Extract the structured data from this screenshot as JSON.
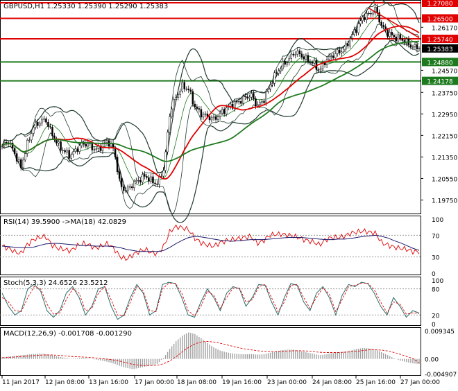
{
  "colors": {
    "background": "#ffffff",
    "frame": "#000000",
    "candles": "#000000",
    "bollinger": "#1f3a2a",
    "ma_red": "#e00000",
    "ma_green": "#1e7a1e",
    "level_red": "#e00000",
    "level_green": "#1e7a1e",
    "rsi_line": "#e00000",
    "rsi_ma": "#1a1a6e",
    "stoch_main": "#2a6a6a",
    "stoch_signal": "#e00000",
    "macd_hist": "#a0a0a0",
    "macd_signal": "#e00000"
  },
  "chart_data": [
    {
      "type": "candlestick",
      "title": "GBPUSD,H1 1.25330 1.25390 1.25290 1.25383",
      "ylim": [
        1.193,
        1.2708
      ],
      "yticks": [
        "1.26170",
        "1.25383",
        "1.24570",
        "1.23750",
        "1.22950",
        "1.22150",
        "1.21350",
        "1.20550",
        "1.19750"
      ],
      "ytick_values": [
        1.2617,
        1.25383,
        1.2457,
        1.2375,
        1.2295,
        1.2215,
        1.2135,
        1.2055,
        1.1975
      ],
      "levels": [
        {
          "label": "1.27080",
          "value": 1.2708,
          "color": "red"
        },
        {
          "label": "1.26500",
          "value": 1.265,
          "color": "red"
        },
        {
          "label": "1.25740",
          "value": 1.2574,
          "color": "red"
        },
        {
          "label": "1.24880",
          "value": 1.2488,
          "color": "green"
        },
        {
          "label": "1.24178",
          "value": 1.24178,
          "color": "green"
        }
      ],
      "current_price": "1.25383",
      "current_value": 1.25383,
      "price_path": [
        1.2175,
        1.2195,
        1.215,
        1.2095,
        1.218,
        1.2245,
        1.2265,
        1.2275,
        1.222,
        1.218,
        1.2155,
        1.214,
        1.2165,
        1.2185,
        1.218,
        1.216,
        1.2175,
        1.2195,
        1.216,
        1.2025,
        1.201,
        1.2035,
        1.205,
        1.2065,
        1.2045,
        1.2035,
        1.2095,
        1.2305,
        1.236,
        1.24,
        1.2385,
        1.232,
        1.2295,
        1.2285,
        1.2275,
        1.2295,
        1.2315,
        1.233,
        1.234,
        1.2355,
        1.2365,
        1.2325,
        1.2345,
        1.24,
        1.2445,
        1.2475,
        1.2495,
        1.2525,
        1.2515,
        1.2495,
        1.2485,
        1.2455,
        1.2495,
        1.251,
        1.2525,
        1.2535,
        1.258,
        1.2615,
        1.2655,
        1.2665,
        1.2685,
        1.262,
        1.2595,
        1.258,
        1.2575,
        1.256,
        1.2545,
        1.2538
      ],
      "xticks": [
        "11 Jan 2017",
        "12 Jan 08:00",
        "13 Jan 16:00",
        "17 Jan 00:00",
        "18 Jan 08:00",
        "19 Jan 16:00",
        "23 Jan 00:00",
        "24 Jan 08:00",
        "25 Jan 16:00",
        "27 Jan 00:00"
      ]
    },
    {
      "type": "line",
      "title": "RSI(14) 39.5900 ->MA(18) 42.0829",
      "ylim": [
        0,
        100
      ],
      "yticks": [
        "100",
        "70",
        "30",
        "0"
      ],
      "ytick_values": [
        100,
        70,
        30,
        0
      ],
      "rsi": [
        50,
        46,
        40,
        36,
        52,
        62,
        66,
        68,
        52,
        46,
        44,
        41,
        50,
        55,
        52,
        46,
        50,
        55,
        45,
        30,
        26,
        34,
        40,
        44,
        38,
        36,
        50,
        78,
        86,
        84,
        80,
        64,
        56,
        52,
        50,
        56,
        60,
        62,
        64,
        66,
        68,
        55,
        60,
        70,
        72,
        72,
        70,
        68,
        64,
        60,
        58,
        52,
        62,
        66,
        66,
        68,
        74,
        76,
        78,
        76,
        74,
        56,
        52,
        48,
        46,
        44,
        40,
        39.59
      ],
      "rsi_ma": [
        50,
        49,
        48,
        47,
        47,
        48,
        51,
        54,
        55,
        55,
        54,
        53,
        52,
        51,
        51,
        50,
        50,
        50,
        49,
        47,
        44,
        42,
        40,
        40,
        40,
        40,
        42,
        48,
        55,
        61,
        66,
        68,
        67,
        65,
        63,
        61,
        60,
        59,
        60,
        61,
        62,
        62,
        62,
        63,
        64,
        65,
        66,
        66,
        66,
        65,
        64,
        63,
        62,
        62,
        63,
        63,
        64,
        66,
        68,
        69,
        70,
        68,
        65,
        60,
        56,
        51,
        46,
        42.0829
      ]
    },
    {
      "type": "line",
      "title": "Stoch(5,3,3) 24.6526 23.5212",
      "ylim": [
        0,
        100
      ],
      "yticks": [
        "100",
        "80",
        "20",
        "0"
      ],
      "ytick_values": [
        100,
        80,
        20,
        0
      ],
      "main": [
        70,
        40,
        20,
        30,
        80,
        90,
        75,
        30,
        15,
        30,
        70,
        85,
        60,
        20,
        40,
        80,
        85,
        40,
        10,
        20,
        60,
        90,
        70,
        20,
        30,
        90,
        95,
        92,
        60,
        20,
        15,
        50,
        80,
        60,
        30,
        70,
        85,
        80,
        40,
        60,
        90,
        88,
        50,
        20,
        60,
        92,
        88,
        50,
        30,
        70,
        85,
        60,
        20,
        65,
        90,
        85,
        95,
        92,
        70,
        40,
        20,
        60,
        40,
        15,
        30,
        24.6526
      ],
      "signal": [
        60,
        50,
        30,
        28,
        60,
        85,
        80,
        45,
        22,
        25,
        55,
        80,
        70,
        30,
        35,
        70,
        85,
        55,
        20,
        18,
        50,
        85,
        75,
        30,
        28,
        80,
        93,
        93,
        70,
        30,
        18,
        40,
        75,
        65,
        35,
        60,
        82,
        82,
        50,
        55,
        85,
        90,
        60,
        28,
        50,
        88,
        90,
        60,
        35,
        60,
        82,
        68,
        28,
        55,
        85,
        88,
        93,
        93,
        78,
        50,
        25,
        50,
        45,
        22,
        25,
        23.5212
      ]
    },
    {
      "type": "bar",
      "title": "MACD(12,26,9) -0.001708 -0.001290",
      "ylim": [
        -0.004907,
        0.009345
      ],
      "yticks": [
        "0.009345",
        "0.00",
        "-0.004907"
      ],
      "ytick_values": [
        0.009345,
        0.0,
        -0.004907
      ],
      "macd": [
        0.0005,
        0.0008,
        0.001,
        0.0012,
        0.0014,
        0.0016,
        0.0018,
        0.0016,
        0.0012,
        0.0008,
        0.0004,
        0.0001,
        0.0002,
        0.0003,
        0.0001,
        -0.0002,
        -0.0006,
        -0.001,
        -0.0016,
        -0.0024,
        -0.003,
        -0.0034,
        -0.003,
        -0.0026,
        -0.0022,
        -0.0016,
        0.0005,
        0.0035,
        0.006,
        0.0078,
        0.0088,
        0.0082,
        0.0068,
        0.0052,
        0.0038,
        0.0028,
        0.0022,
        0.0018,
        0.0016,
        0.0015,
        0.0016,
        0.0014,
        0.0015,
        0.002,
        0.0025,
        0.0029,
        0.0031,
        0.003,
        0.0026,
        0.0021,
        0.0017,
        0.0012,
        0.0015,
        0.0019,
        0.0022,
        0.0024,
        0.0028,
        0.0033,
        0.0036,
        0.0035,
        0.0031,
        0.0022,
        0.0012,
        0.0002,
        -0.0006,
        -0.0011,
        -0.0015,
        -0.001708
      ],
      "signal": [
        0.0004,
        0.0005,
        0.0006,
        0.0008,
        0.0009,
        0.0011,
        0.0012,
        0.0013,
        0.0013,
        0.0012,
        0.001,
        0.0008,
        0.0007,
        0.0006,
        0.0005,
        0.0003,
        0.0001,
        -0.0001,
        -0.0004,
        -0.0008,
        -0.0013,
        -0.0018,
        -0.0021,
        -0.0022,
        -0.0022,
        -0.0021,
        -0.0016,
        -0.0006,
        0.0008,
        0.0024,
        0.0039,
        0.005,
        0.0056,
        0.0058,
        0.0056,
        0.0052,
        0.0047,
        0.0042,
        0.0037,
        0.0033,
        0.003,
        0.0027,
        0.0025,
        0.0024,
        0.0024,
        0.0025,
        0.0026,
        0.0027,
        0.0027,
        0.0026,
        0.0024,
        0.0022,
        0.0021,
        0.0021,
        0.0021,
        0.0022,
        0.0023,
        0.0025,
        0.0028,
        0.003,
        0.003,
        0.0029,
        0.0026,
        0.0021,
        0.0015,
        0.0008,
        0.0001,
        -0.00129
      ]
    }
  ]
}
